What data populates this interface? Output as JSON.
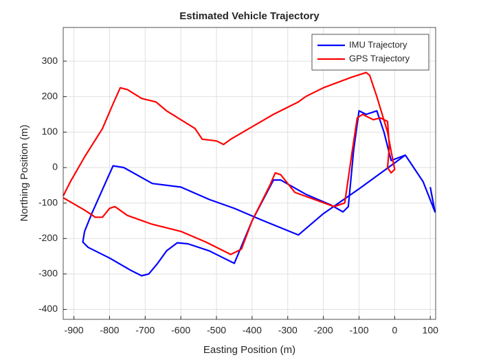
{
  "chart_data": {
    "type": "line",
    "title": "Estimated Vehicle Trajectory",
    "xlabel": "Easting Position (m)",
    "ylabel": "Northing Position (m)",
    "xlim": [
      -930,
      115
    ],
    "ylim": [
      -428,
      395
    ],
    "xticks": [
      -900,
      -800,
      -700,
      -600,
      -500,
      -400,
      -300,
      -200,
      -100,
      0,
      100
    ],
    "yticks": [
      -400,
      -300,
      -200,
      -100,
      0,
      100,
      200,
      300
    ],
    "grid": true,
    "legend": "northeast",
    "series": [
      {
        "name": "IMU Trajectory",
        "color": "#0000ff",
        "x": [
          100,
          113,
          80,
          30,
          -100,
          -200,
          -270,
          -380,
          -450,
          -520,
          -600,
          -680,
          -760,
          -790,
          -810,
          -850,
          -870,
          -875,
          -860,
          -800,
          -740,
          -710,
          -690,
          -665,
          -640,
          -610,
          -580,
          -520,
          -480,
          -450,
          -400,
          -340,
          -320,
          -250,
          -180,
          -145,
          -130,
          -115,
          -100,
          -80,
          -50,
          -30,
          -10,
          30
        ],
        "values": [
          -55,
          -125,
          -40,
          35,
          -60,
          -130,
          -190,
          -145,
          -115,
          -90,
          -55,
          -45,
          0,
          5,
          -40,
          -130,
          -180,
          -210,
          -225,
          -255,
          -290,
          -305,
          -300,
          -270,
          -235,
          -212,
          -215,
          -235,
          -255,
          -270,
          -150,
          -35,
          -35,
          -75,
          -105,
          -125,
          -110,
          50,
          160,
          150,
          160,
          100,
          20,
          35
        ]
      },
      {
        "name": "GPS Trajectory",
        "color": "#ff0000",
        "x": [
          -930,
          -910,
          -870,
          -820,
          -790,
          -770,
          -750,
          -710,
          -670,
          -640,
          -600,
          -560,
          -540,
          -500,
          -480,
          -460,
          -400,
          -340,
          -270,
          -250,
          -200,
          -120,
          -80,
          -70,
          -50,
          -20,
          -5,
          0,
          -10,
          -20,
          -15,
          -20,
          -40,
          -60,
          -90,
          -105,
          -120,
          -140,
          -170,
          -280,
          -320,
          -335,
          -350,
          -400,
          -430,
          -460,
          -530,
          -600,
          -680,
          -750,
          -785,
          -800,
          -820,
          -840,
          -870,
          -930
        ],
        "values": [
          -80,
          -40,
          30,
          110,
          180,
          225,
          220,
          195,
          185,
          160,
          135,
          110,
          80,
          75,
          65,
          80,
          115,
          150,
          185,
          200,
          225,
          255,
          268,
          260,
          200,
          100,
          20,
          -5,
          -15,
          0,
          60,
          130,
          140,
          135,
          150,
          140,
          40,
          -100,
          -110,
          -70,
          -20,
          -15,
          -50,
          -150,
          -230,
          -245,
          -210,
          -180,
          -160,
          -135,
          -110,
          -115,
          -140,
          -140,
          -120,
          -85
        ]
      }
    ]
  }
}
